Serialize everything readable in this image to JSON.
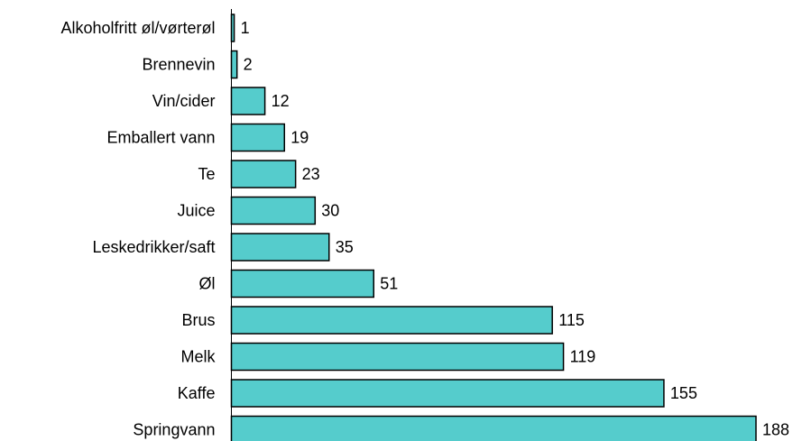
{
  "chart_data": {
    "type": "bar",
    "orientation": "horizontal",
    "categories": [
      "Alkoholfritt øl/vørterøl",
      "Brennevin",
      "Vin/cider",
      "Emballert vann",
      "Te",
      "Juice",
      "Leskedrikker/saft",
      "Øl",
      "Brus",
      "Melk",
      "Kaffe",
      "Springvann"
    ],
    "values": [
      1,
      2,
      12,
      19,
      23,
      30,
      35,
      51,
      115,
      119,
      155,
      188
    ],
    "value_labels": [
      "1",
      "2",
      "12",
      "19",
      "23",
      "30",
      "35",
      "51",
      "115",
      "119",
      "155",
      "188"
    ],
    "xlim": [
      0,
      188
    ],
    "grid": false,
    "legend": "none",
    "bar_color": "#55CCCC",
    "bar_edge_color": "#000000"
  }
}
